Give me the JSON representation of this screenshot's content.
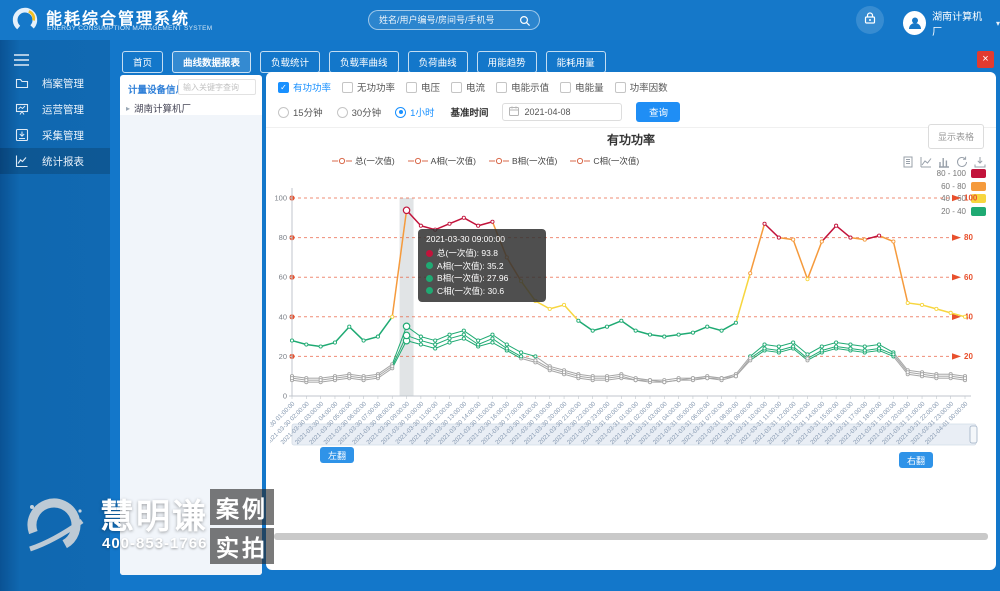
{
  "header": {
    "title": "能耗综合管理系统",
    "subtitle": "ENERGY CONSUMPTION MANAGEMENT SYSTEM",
    "search_placeholder": "姓名/用户编号/房间号/手机号",
    "user_name": "湖南计算机厂"
  },
  "sidebar": {
    "items": [
      {
        "label": "档案管理",
        "icon": "folder-icon",
        "active": false
      },
      {
        "label": "运营管理",
        "icon": "operations-icon",
        "active": false
      },
      {
        "label": "采集管理",
        "icon": "collection-icon",
        "active": false
      },
      {
        "label": "统计报表",
        "icon": "report-icon",
        "active": true
      }
    ]
  },
  "tabs": {
    "items": [
      "首页",
      "曲线数据报表",
      "负载统计",
      "负载率曲线",
      "负荷曲线",
      "用能趋势",
      "能耗用量"
    ],
    "active": "曲线数据报表",
    "close_label": "×"
  },
  "device_panel": {
    "title": "计量设备信息",
    "search_placeholder": "输入关键字查询",
    "tree_items": [
      "湖南计算机厂"
    ]
  },
  "filters": {
    "metrics": [
      {
        "label": "有功功率",
        "checked": true
      },
      {
        "label": "无功功率",
        "checked": false
      },
      {
        "label": "电压",
        "checked": false
      },
      {
        "label": "电流",
        "checked": false
      },
      {
        "label": "电能示值",
        "checked": false
      },
      {
        "label": "电能量",
        "checked": false
      },
      {
        "label": "功率因数",
        "checked": false
      }
    ],
    "intervals": [
      {
        "label": "15分钟",
        "selected": false
      },
      {
        "label": "30分钟",
        "selected": false
      },
      {
        "label": "1小时",
        "selected": true
      }
    ],
    "base_time_label": "基准时间",
    "base_time_value": "2021-04-08",
    "query_label": "查询"
  },
  "chart": {
    "title": "有功功率",
    "show_table_label": "显示表格",
    "legend": [
      "总(一次值)",
      "A相(一次值)",
      "B相(一次值)",
      "C相(一次值)"
    ],
    "legend_marker_color": "#d96a4b",
    "toolbox": [
      "data-view-icon",
      "line-chart-icon",
      "bar-chart-icon",
      "restore-icon",
      "download-icon"
    ],
    "tooltip": {
      "title": "2021-03-30 09:00:00",
      "rows": [
        {
          "name": "总(一次值)",
          "value": "93.8",
          "color": "#c2133b"
        },
        {
          "name": "A相(一次值)",
          "value": "35.2",
          "color": "#1faa73"
        },
        {
          "name": "B相(一次值)",
          "value": "27.96",
          "color": "#1faa73"
        },
        {
          "name": "C相(一次值)",
          "value": "30.6",
          "color": "#1faa73"
        }
      ]
    },
    "page_prev": "左翻",
    "page_next": "右翻"
  },
  "chart_data": {
    "type": "line",
    "title": "有功功率",
    "x": [
      "2021-03-30 01:00:00",
      "2021-03-30 02:00:00",
      "2021-03-30 03:00:00",
      "2021-03-30 04:00:00",
      "2021-03-30 05:00:00",
      "2021-03-30 06:00:00",
      "2021-03-30 07:00:00",
      "2021-03-30 08:00:00",
      "2021-03-30 09:00:00",
      "2021-03-30 10:00:00",
      "2021-03-30 11:00:00",
      "2021-03-30 12:00:00",
      "2021-03-30 13:00:00",
      "2021-03-30 14:00:00",
      "2021-03-30 15:00:00",
      "2021-03-30 16:00:00",
      "2021-03-30 17:00:00",
      "2021-03-30 18:00:00",
      "2021-03-30 19:00:00",
      "2021-03-30 20:00:00",
      "2021-03-30 21:00:00",
      "2021-03-30 22:00:00",
      "2021-03-30 23:00:00",
      "2021-03-31 00:00:00",
      "2021-03-31 01:00:00",
      "2021-03-31 02:00:00",
      "2021-03-31 03:00:00",
      "2021-03-31 04:00:00",
      "2021-03-31 05:00:00",
      "2021-03-31 06:00:00",
      "2021-03-31 07:00:00",
      "2021-03-31 08:00:00",
      "2021-03-31 09:00:00",
      "2021-03-31 10:00:00",
      "2021-03-31 11:00:00",
      "2021-03-31 12:00:00",
      "2021-03-31 13:00:00",
      "2021-03-31 14:00:00",
      "2021-03-31 15:00:00",
      "2021-03-31 16:00:00",
      "2021-03-31 17:00:00",
      "2021-03-31 18:00:00",
      "2021-03-31 19:00:00",
      "2021-03-31 20:00:00",
      "2021-03-31 21:00:00",
      "2021-03-31 22:00:00",
      "2021-03-31 23:00:00",
      "2021-04-01 00:00:00"
    ],
    "series": [
      {
        "name": "总(一次值)",
        "values": [
          28,
          26,
          25,
          27,
          35,
          28,
          30,
          40,
          93.8,
          86,
          84,
          87,
          90,
          86,
          88,
          70,
          58,
          48,
          44,
          46,
          38,
          33,
          35,
          38,
          33,
          31,
          30,
          31,
          32,
          35,
          33,
          37,
          62,
          87,
          80,
          79,
          59,
          78,
          86,
          80,
          79,
          81,
          78,
          47,
          46,
          44,
          42,
          40
        ]
      },
      {
        "name": "A相(一次值)",
        "values": [
          10,
          9,
          9,
          10,
          11,
          10,
          11,
          16,
          35.2,
          30,
          28,
          31,
          33,
          28,
          31,
          26,
          22,
          20,
          15,
          13,
          11,
          10,
          10,
          11,
          9,
          8,
          8,
          9,
          9,
          10,
          9,
          11,
          20,
          26,
          25,
          27,
          21,
          25,
          27,
          26,
          25,
          26,
          22,
          13,
          12,
          11,
          11,
          10
        ]
      },
      {
        "name": "B相(一次值)",
        "values": [
          8,
          7,
          7,
          8,
          9,
          8,
          9,
          14,
          27.96,
          26,
          24,
          27,
          29,
          25,
          27,
          23,
          19,
          17,
          13,
          11,
          9,
          8,
          8,
          9,
          8,
          7,
          7,
          8,
          8,
          9,
          8,
          10,
          18,
          23,
          22,
          24,
          18,
          22,
          24,
          23,
          22,
          23,
          20,
          11,
          10,
          9,
          9,
          8
        ]
      },
      {
        "name": "C相(一次值)",
        "values": [
          9,
          8,
          8,
          9,
          10,
          9,
          10,
          15,
          30.6,
          28,
          26,
          29,
          31,
          26,
          29,
          24,
          20,
          18,
          14,
          12,
          10,
          9,
          9,
          10,
          8,
          8,
          7,
          8,
          9,
          9,
          9,
          10,
          19,
          24,
          23,
          25,
          19,
          23,
          25,
          24,
          23,
          24,
          21,
          12,
          11,
          10,
          10,
          9
        ]
      }
    ],
    "ylim": [
      0,
      100
    ],
    "yticks": [
      0,
      20,
      40,
      60,
      80,
      100
    ],
    "marklines": [
      20,
      40,
      60,
      80,
      100
    ],
    "visual_pieces": [
      {
        "label": "80 - 100",
        "min": 80,
        "max": 100,
        "color": "#c2133b"
      },
      {
        "label": "60 - 80",
        "min": 60,
        "max": 80,
        "color": "#f59a3c"
      },
      {
        "label": "40 - 60",
        "min": 40,
        "max": 60,
        "color": "#f7d63f"
      },
      {
        "label": "20 - 40",
        "min": 20,
        "max": 40,
        "color": "#1faa73"
      }
    ],
    "default_color": "#a6a6a6",
    "highlight_index": 8,
    "legend_position": "top-left",
    "grid": false
  },
  "watermark": {
    "brand": "慧明谦",
    "phone": "400-853-1766",
    "badges": [
      "案例",
      "实拍"
    ]
  }
}
